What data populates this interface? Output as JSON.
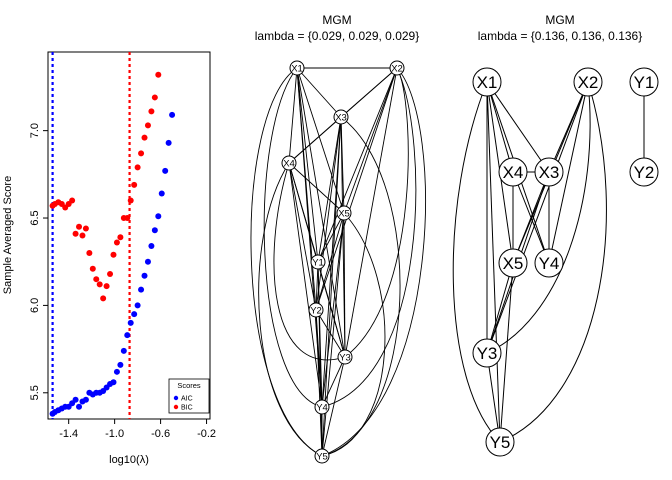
{
  "chart_data": [
    {
      "type": "scatter",
      "title": "",
      "xlabel": "log10(λ)",
      "ylabel": "Sample Averaged Score",
      "xlim": [
        -1.58,
        -0.17
      ],
      "ylim": [
        5.35,
        7.45
      ],
      "xticks": [
        "-1.4",
        "-1.0",
        "-0.6",
        "-0.2"
      ],
      "yticks": [
        "5.5",
        "6.0",
        "6.5",
        "7.0"
      ],
      "legend": {
        "title": "Scores",
        "position": "bottom-right",
        "entries": [
          "AIC",
          "BIC"
        ]
      },
      "vlines": [
        {
          "x": -1.54,
          "color": "#0000ff",
          "style": "dotted"
        },
        {
          "x": -0.87,
          "color": "#ff0000",
          "style": "dotted"
        }
      ],
      "series": [
        {
          "name": "AIC",
          "color": "#0000ff",
          "points": [
            [
              -1.54,
              5.38
            ],
            [
              -1.52,
              5.39
            ],
            [
              -1.49,
              5.4
            ],
            [
              -1.46,
              5.41
            ],
            [
              -1.43,
              5.42
            ],
            [
              -1.4,
              5.42
            ],
            [
              -1.37,
              5.44
            ],
            [
              -1.34,
              5.46
            ],
            [
              -1.31,
              5.42
            ],
            [
              -1.28,
              5.45
            ],
            [
              -1.25,
              5.46
            ],
            [
              -1.22,
              5.5
            ],
            [
              -1.19,
              5.49
            ],
            [
              -1.16,
              5.5
            ],
            [
              -1.13,
              5.5
            ],
            [
              -1.1,
              5.51
            ],
            [
              -1.07,
              5.53
            ],
            [
              -1.04,
              5.55
            ],
            [
              -1.01,
              5.56
            ],
            [
              -0.98,
              5.62
            ],
            [
              -0.95,
              5.66
            ],
            [
              -0.92,
              5.74
            ],
            [
              -0.89,
              5.83
            ],
            [
              -0.86,
              5.9
            ],
            [
              -0.83,
              5.95
            ],
            [
              -0.8,
              6.0
            ],
            [
              -0.77,
              6.09
            ],
            [
              -0.74,
              6.17
            ],
            [
              -0.71,
              6.25
            ],
            [
              -0.68,
              6.34
            ],
            [
              -0.65,
              6.43
            ],
            [
              -0.62,
              6.51
            ],
            [
              -0.59,
              6.64
            ],
            [
              -0.56,
              6.77
            ],
            [
              -0.53,
              6.93
            ],
            [
              -0.5,
              7.09
            ]
          ]
        },
        {
          "name": "BIC",
          "color": "#ff0000",
          "points": [
            [
              -1.54,
              6.57
            ],
            [
              -1.52,
              6.58
            ],
            [
              -1.49,
              6.59
            ],
            [
              -1.46,
              6.58
            ],
            [
              -1.43,
              6.56
            ],
            [
              -1.4,
              6.58
            ],
            [
              -1.37,
              6.6
            ],
            [
              -1.34,
              6.41
            ],
            [
              -1.31,
              6.45
            ],
            [
              -1.28,
              6.4
            ],
            [
              -1.25,
              6.44
            ],
            [
              -1.22,
              6.3
            ],
            [
              -1.19,
              6.21
            ],
            [
              -1.16,
              6.15
            ],
            [
              -1.13,
              6.12
            ],
            [
              -1.1,
              6.04
            ],
            [
              -1.07,
              6.11
            ],
            [
              -1.04,
              6.18
            ],
            [
              -1.01,
              6.29
            ],
            [
              -0.98,
              6.36
            ],
            [
              -0.95,
              6.39
            ],
            [
              -0.92,
              6.5
            ],
            [
              -0.89,
              6.5
            ],
            [
              -0.86,
              6.6
            ],
            [
              -0.83,
              6.69
            ],
            [
              -0.8,
              6.79
            ],
            [
              -0.77,
              6.87
            ],
            [
              -0.74,
              6.96
            ],
            [
              -0.71,
              7.03
            ],
            [
              -0.68,
              7.11
            ],
            [
              -0.65,
              7.19
            ],
            [
              -0.62,
              7.32
            ]
          ]
        }
      ]
    },
    {
      "type": "graph",
      "title": "MGM",
      "subtitle": "lambda = {0.029, 0.029, 0.029}",
      "nodes": [
        "X1",
        "X2",
        "X3",
        "X4",
        "X5",
        "Y1",
        "Y2",
        "Y3",
        "Y4",
        "Y5"
      ]
    },
    {
      "type": "graph",
      "title": "MGM",
      "subtitle": "lambda = {0.136, 0.136, 0.136}",
      "nodes": [
        "X1",
        "X2",
        "Y1",
        "X4",
        "X3",
        "Y2",
        "X5",
        "Y4",
        "Y3",
        "Y5"
      ],
      "edges": [
        [
          "X1",
          "X4"
        ],
        [
          "X1",
          "X3"
        ],
        [
          "X1",
          "X5"
        ],
        [
          "X1",
          "Y4"
        ],
        [
          "X1",
          "Y3"
        ],
        [
          "X1",
          "Y5"
        ],
        [
          "X2",
          "X3"
        ],
        [
          "X2",
          "X5"
        ],
        [
          "X2",
          "Y4"
        ],
        [
          "X2",
          "Y3"
        ],
        [
          "X4",
          "X5"
        ],
        [
          "X4",
          "X3"
        ],
        [
          "X4",
          "Y4"
        ],
        [
          "X3",
          "X5"
        ],
        [
          "X3",
          "Y4"
        ],
        [
          "X3",
          "Y3"
        ],
        [
          "X5",
          "Y3"
        ],
        [
          "X5",
          "Y5"
        ],
        [
          "Y3",
          "Y5"
        ],
        [
          "Y1",
          "Y2"
        ]
      ]
    }
  ]
}
